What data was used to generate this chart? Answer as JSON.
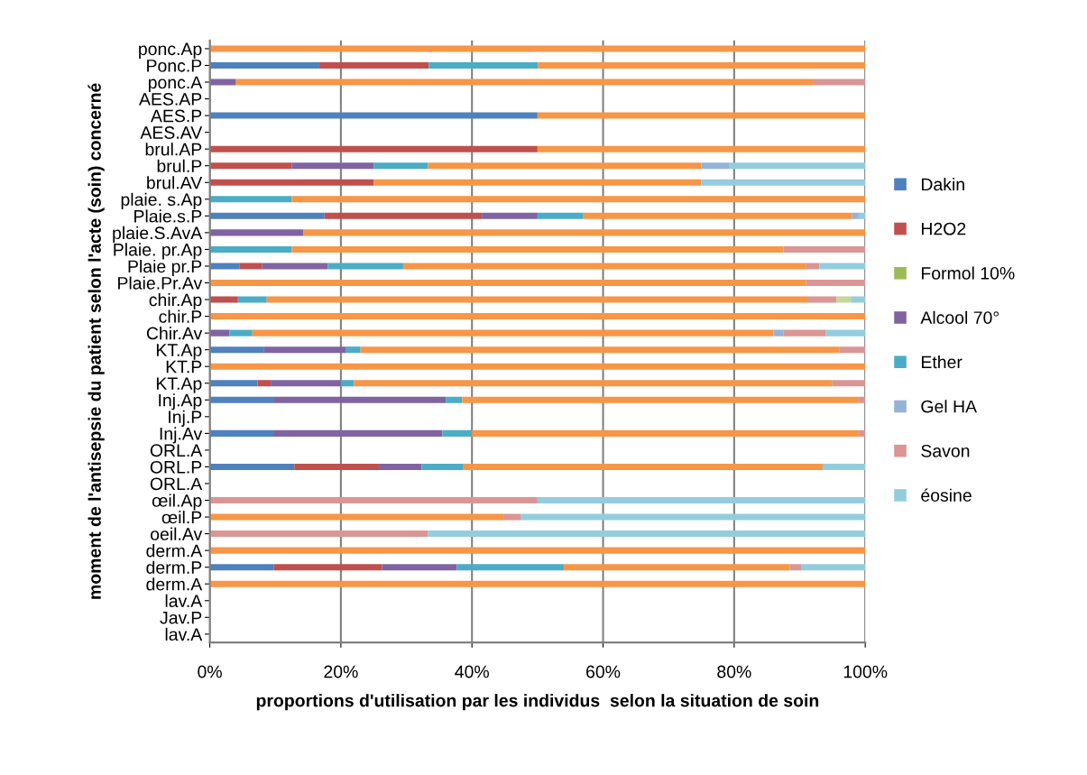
{
  "chart_data": {
    "type": "bar",
    "orientation": "horizontal",
    "stacked": true,
    "xlabel": "proportions d'utilisation par les individus  selon la situation de soin",
    "ylabel": "moment de l'antisepsie du patient selon l'acte (soin) concerné",
    "categories": [
      "ponc.Ap",
      "Ponc.P",
      "ponc.A",
      "AES.AP",
      "AES.P",
      "AES.AV",
      "brul.AP",
      "brul.P",
      "brul.AV",
      "plaie. s.Ap",
      "Plaie.s.P",
      "plaie.S.AvA",
      "Plaie. pr.Ap",
      "Plaie pr.P",
      "Plaie.Pr.Av",
      "chir.Ap",
      "chir.P",
      "Chir.Av",
      "KT.Ap",
      "KT.P",
      "KT.Ap",
      "Inj.Ap",
      "Inj.P",
      "Inj.Av",
      "ORL.A",
      "ORL.P",
      "ORL.A",
      "œil.Ap",
      "œil.P",
      "oeil.Av",
      "derm.A",
      "derm.P",
      "derm.A",
      "lav.A",
      "Jav.P",
      "lav.A"
    ],
    "series": [
      {
        "name": "Dakin",
        "color": "#4f81bd",
        "values": [
          0,
          16.7,
          0,
          0,
          50,
          0,
          0,
          0,
          0,
          0,
          17.5,
          0,
          0,
          4.5,
          0,
          0,
          0,
          0,
          8.3,
          0,
          7.3,
          9.7,
          0,
          9.7,
          0,
          12.9,
          0,
          0,
          0,
          0,
          0,
          9.8,
          0,
          0,
          0,
          0
        ]
      },
      {
        "name": "H2O2",
        "color": "#c0504d",
        "values": [
          0,
          16.7,
          0,
          0,
          0,
          0,
          50,
          12.5,
          25,
          0,
          24,
          0,
          0,
          3.5,
          0,
          4.3,
          0,
          0,
          0,
          0,
          2,
          0,
          0,
          0,
          0,
          12.9,
          0,
          0,
          0,
          0,
          0,
          16.5,
          0,
          0,
          0,
          0
        ]
      },
      {
        "name": "Formol 10%",
        "color": "#9bbb59",
        "values": [
          0,
          0,
          0,
          0,
          0,
          0,
          0,
          0,
          0,
          0,
          0,
          0,
          0,
          0,
          0,
          0,
          0,
          0,
          0,
          0,
          0,
          0,
          0,
          0,
          0,
          0,
          0,
          0,
          0,
          0,
          0,
          0,
          0,
          0,
          0,
          0
        ]
      },
      {
        "name": "Alcool 70°",
        "color": "#8064a2",
        "values": [
          0,
          0,
          4,
          0,
          0,
          0,
          0,
          12.5,
          0,
          0,
          8.5,
          14.3,
          0,
          10,
          0,
          0,
          0,
          3,
          12.5,
          0,
          10.7,
          26.3,
          0,
          25.8,
          0,
          6.5,
          0,
          0,
          0,
          0,
          0,
          11.4,
          0,
          0,
          0,
          0
        ]
      },
      {
        "name": "Ether",
        "color": "#4bacc6",
        "values": [
          0,
          16.7,
          0,
          0,
          0,
          0,
          0,
          8.3,
          0,
          12.5,
          7,
          0,
          12.5,
          11.5,
          0,
          4.4,
          0,
          3.5,
          2.2,
          0,
          2,
          2.5,
          0,
          4.5,
          0,
          6.4,
          0,
          0,
          0,
          0,
          0,
          16.3,
          0,
          0,
          0,
          0
        ]
      },
      {
        "color": "#f79646",
        "values": [
          100,
          50,
          88,
          0,
          50,
          0,
          50,
          41.7,
          50,
          87.5,
          41,
          85.7,
          75,
          61.5,
          91,
          82.6,
          100,
          79.5,
          73,
          100,
          73,
          60.5,
          0,
          59,
          0,
          54.8,
          0,
          0,
          44.8,
          0,
          100,
          34.5,
          100,
          0,
          0,
          0
        ]
      },
      {
        "name": "Gel HA",
        "color": "#95b3d7",
        "values": [
          0,
          0,
          0,
          0,
          0,
          0,
          0,
          4.2,
          0,
          0,
          1,
          0,
          0,
          0,
          0,
          0,
          0,
          1.5,
          0,
          0,
          0,
          0,
          0,
          0,
          0,
          0,
          0,
          0,
          0,
          0,
          0,
          0,
          0,
          0,
          0,
          0
        ]
      },
      {
        "name": "Savon",
        "color": "#d99694",
        "values": [
          0,
          0,
          8,
          0,
          0,
          0,
          0,
          0,
          0,
          0,
          0,
          0,
          12.5,
          2,
          9,
          4.3,
          0,
          6.5,
          4,
          0,
          5,
          1,
          0,
          1,
          0,
          0,
          0,
          50,
          2.7,
          33.3,
          0,
          1.7,
          0,
          0,
          0,
          0
        ]
      },
      {
        "color": "#c3d69b",
        "values": [
          0,
          0,
          0,
          0,
          0,
          0,
          0,
          0,
          0,
          0,
          0,
          0,
          0,
          0,
          0,
          2.2,
          0,
          0,
          0,
          0,
          0,
          0,
          0,
          0,
          0,
          0,
          0,
          0,
          0,
          0,
          0,
          0,
          0,
          0,
          0,
          0
        ]
      },
      {
        "color": "#b3a2c7",
        "values": [
          0,
          0,
          0,
          0,
          0,
          0,
          0,
          0,
          0,
          0,
          0,
          0,
          0,
          0,
          0,
          0,
          0,
          0,
          0,
          0,
          0,
          0,
          0,
          0,
          0,
          0,
          0,
          0,
          0,
          0,
          0,
          0,
          0,
          0,
          0,
          0
        ]
      },
      {
        "name": "éosine",
        "color": "#93cddd",
        "values": [
          0,
          0,
          0,
          0,
          0,
          0,
          0,
          20.8,
          25,
          0,
          1,
          0,
          0,
          7,
          0,
          2.2,
          0,
          6,
          0,
          0,
          0,
          0,
          0,
          0,
          0,
          6.5,
          0,
          50,
          52.5,
          66.7,
          0,
          9.8,
          0,
          0,
          0,
          0
        ]
      }
    ],
    "xlim": [
      0,
      100
    ],
    "xticks": [
      {
        "value": 0,
        "label": "0%"
      },
      {
        "value": 20,
        "label": "20%"
      },
      {
        "value": 40,
        "label": "40%"
      },
      {
        "value": 60,
        "label": "60%"
      },
      {
        "value": 80,
        "label": "80%"
      },
      {
        "value": 100,
        "label": "100%"
      }
    ],
    "grid": "x",
    "legend": "right"
  }
}
